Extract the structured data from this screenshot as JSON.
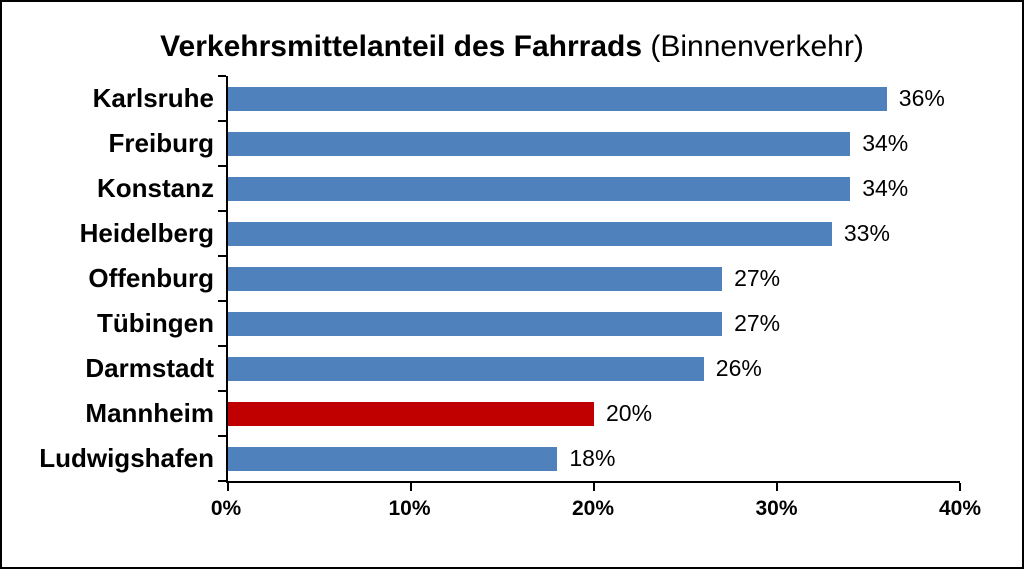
{
  "title": {
    "bold": "Verkehrsmittelanteil des Fahrrads",
    "normal": " (Binnenverkehr)"
  },
  "chart_data": {
    "type": "bar",
    "orientation": "horizontal",
    "title": "Verkehrsmittelanteil des Fahrrads (Binnenverkehr)",
    "categories": [
      "Karlsruhe",
      "Freiburg",
      "Konstanz",
      "Heidelberg",
      "Offenburg",
      "Tübingen",
      "Darmstadt",
      "Mannheim",
      "Ludwigshafen"
    ],
    "values": [
      36,
      34,
      34,
      33,
      27,
      27,
      26,
      20,
      18
    ],
    "value_labels": [
      "36%",
      "34%",
      "34%",
      "33%",
      "27%",
      "27%",
      "26%",
      "20%",
      "18%"
    ],
    "bar_colors": {
      "default": "#4f81bd",
      "highlight": "#c00000",
      "highlight_category": "Mannheim"
    },
    "x_axis": {
      "min": 0,
      "max": 40,
      "ticks": [
        "0%",
        "10%",
        "20%",
        "30%",
        "40%"
      ]
    },
    "xlabel": "",
    "ylabel": "",
    "grid": false,
    "legend": false
  }
}
